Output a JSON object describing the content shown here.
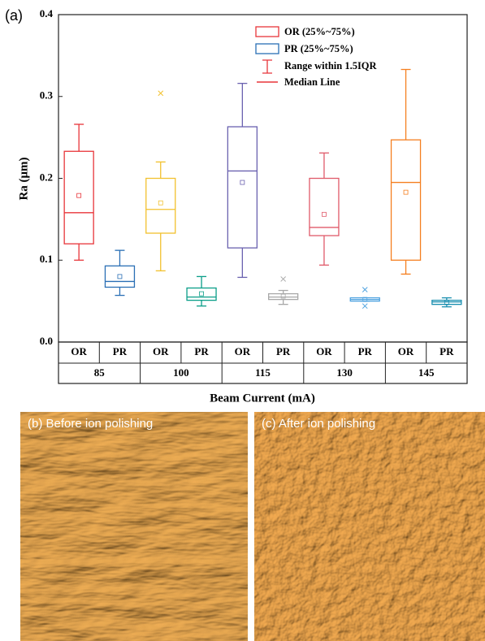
{
  "chart_data": {
    "type": "box",
    "panel_label": "(a)",
    "ylabel": "Ra (μm)",
    "xlabel": "Beam Current (mA)",
    "ylim": [
      0,
      0.4
    ],
    "yticks": [
      {
        "value": 0,
        "label": "0.0"
      },
      0.1,
      0.2,
      0.3,
      0.4
    ],
    "groups": [
      "85",
      "100",
      "115",
      "130",
      "145"
    ],
    "boxes": [
      {
        "label": "OR",
        "color": "#e8353a",
        "whisker_low": 0.1,
        "q1": 0.12,
        "median": 0.158,
        "q3": 0.233,
        "whisker_high": 0.266,
        "mean": 0.179,
        "outliers": []
      },
      {
        "label": "PR",
        "color": "#2a6fb5",
        "whisker_low": 0.057,
        "q1": 0.067,
        "median": 0.074,
        "q3": 0.093,
        "whisker_high": 0.112,
        "mean": 0.08,
        "outliers": []
      },
      {
        "label": "OR",
        "color": "#f2c12e",
        "whisker_low": 0.087,
        "q1": 0.133,
        "median": 0.162,
        "q3": 0.2,
        "whisker_high": 0.22,
        "mean": 0.17,
        "outliers": [
          0.304
        ]
      },
      {
        "label": "PR",
        "color": "#0a9e88",
        "whisker_low": 0.044,
        "q1": 0.051,
        "median": 0.055,
        "q3": 0.066,
        "whisker_high": 0.08,
        "mean": 0.059,
        "outliers": []
      },
      {
        "label": "OR",
        "color": "#6b62b0",
        "whisker_low": 0.079,
        "q1": 0.115,
        "median": 0.209,
        "q3": 0.263,
        "whisker_high": 0.316,
        "mean": 0.195,
        "outliers": []
      },
      {
        "label": "PR",
        "color": "#a8a8a8",
        "whisker_low": 0.046,
        "q1": 0.052,
        "median": 0.055,
        "q3": 0.059,
        "whisker_high": 0.063,
        "mean": 0.056,
        "outliers": [
          0.077
        ]
      },
      {
        "label": "OR",
        "color": "#e05a6a",
        "whisker_low": 0.094,
        "q1": 0.13,
        "median": 0.14,
        "q3": 0.2,
        "whisker_high": 0.231,
        "mean": 0.156,
        "outliers": []
      },
      {
        "label": "PR",
        "color": "#4fa3e0",
        "whisker_low": 0.05,
        "q1": 0.05,
        "median": 0.052,
        "q3": 0.054,
        "whisker_high": 0.054,
        "mean": 0.052,
        "outliers": [
          0.064,
          0.044
        ]
      },
      {
        "label": "OR",
        "color": "#f57f20",
        "whisker_low": 0.083,
        "q1": 0.1,
        "median": 0.195,
        "q3": 0.247,
        "whisker_high": 0.333,
        "mean": 0.183,
        "outliers": []
      },
      {
        "label": "PR",
        "color": "#1a8fb0",
        "whisker_low": 0.043,
        "q1": 0.046,
        "median": 0.049,
        "q3": 0.051,
        "whisker_high": 0.054,
        "mean": 0.048,
        "outliers": []
      }
    ],
    "legend": [
      "OR (25%~75%)",
      "PR (25%~75%)",
      "Range within 1.5IQR",
      "Median Line"
    ]
  },
  "images": [
    {
      "label": "(b) Before ion polishing"
    },
    {
      "label": "(c) After ion polishing"
    }
  ]
}
